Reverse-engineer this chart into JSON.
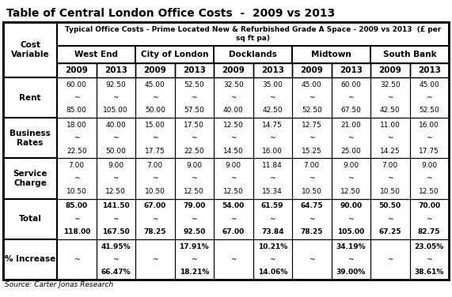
{
  "title": "Table of Central London Office Costs  -  2009 vs 2013",
  "subtitle": "Typical Office Costs - Prime Located New & Refurbished Grade A Space - 2009 vs 2013  (£ per\nsq ft pa)",
  "source": "Source: Carter Jonas Research",
  "locations": [
    "West End",
    "City of London",
    "Docklands",
    "Midtown",
    "South Bank"
  ],
  "years": [
    "2009",
    "2013"
  ],
  "cost_variable_label": "Cost\nVariable",
  "row_keys": [
    "Rent",
    "Business\nRates",
    "Service\nCharge",
    "Total",
    "% Increase"
  ],
  "tilde": "~",
  "data": {
    "Rent": [
      [
        [
          "60.00",
          "~",
          "85.00"
        ],
        [
          "92.50",
          "~",
          "105.00"
        ]
      ],
      [
        [
          "45.00",
          "~",
          "50.00"
        ],
        [
          "52.50",
          "~",
          "57.50"
        ]
      ],
      [
        [
          "32.50",
          "~",
          "40.00"
        ],
        [
          "35.00",
          "~",
          "42.50"
        ]
      ],
      [
        [
          "45.00",
          "~",
          "52.50"
        ],
        [
          "60.00",
          "~",
          "67.50"
        ]
      ],
      [
        [
          "32.50",
          "~",
          "42.50"
        ],
        [
          "45.00",
          "~",
          "52.50"
        ]
      ]
    ],
    "Business\nRates": [
      [
        [
          "18.00",
          "~",
          "22.50"
        ],
        [
          "40.00",
          "~",
          "50.00"
        ]
      ],
      [
        [
          "15.00",
          "~",
          "17.75"
        ],
        [
          "17.50",
          "~",
          "22.50"
        ]
      ],
      [
        [
          "12.50",
          "~",
          "14.50"
        ],
        [
          "14.75",
          "~",
          "16.00"
        ]
      ],
      [
        [
          "12.75",
          "~",
          "15.25"
        ],
        [
          "21.00",
          "~",
          "25.00"
        ]
      ],
      [
        [
          "11.00",
          "~",
          "14.25"
        ],
        [
          "16.00",
          "~",
          "17.75"
        ]
      ]
    ],
    "Service\nCharge": [
      [
        [
          "7.00",
          "~",
          "10.50"
        ],
        [
          "9.00",
          "~",
          "12.50"
        ]
      ],
      [
        [
          "7.00",
          "~",
          "10.50"
        ],
        [
          "9.00",
          "~",
          "12.50"
        ]
      ],
      [
        [
          "9.00",
          "~",
          "12.50"
        ],
        [
          "11.84",
          "~",
          "15.34"
        ]
      ],
      [
        [
          "7.00",
          "~",
          "10.50"
        ],
        [
          "9.00",
          "~",
          "12.50"
        ]
      ],
      [
        [
          "7.00",
          "~",
          "10.50"
        ],
        [
          "9.00",
          "~",
          "12.50"
        ]
      ]
    ],
    "Total": [
      [
        [
          "85.00",
          "~",
          "118.00"
        ],
        [
          "141.50",
          "~",
          "167.50"
        ]
      ],
      [
        [
          "67.00",
          "~",
          "78.25"
        ],
        [
          "79.00",
          "~",
          "92.50"
        ]
      ],
      [
        [
          "54.00",
          "~",
          "67.00"
        ],
        [
          "61.59",
          "~",
          "73.84"
        ]
      ],
      [
        [
          "64.75",
          "~",
          "78.25"
        ],
        [
          "90.00",
          "~",
          "105.00"
        ]
      ],
      [
        [
          "50.50",
          "~",
          "67.25"
        ],
        [
          "70.00",
          "~",
          "82.75"
        ]
      ]
    ],
    "% Increase": [
      [
        [
          "",
          "~",
          ""
        ],
        [
          "41.95%",
          "~",
          "66.47%"
        ]
      ],
      [
        [
          "",
          "~",
          ""
        ],
        [
          "17.91%",
          "~",
          "18.21%"
        ]
      ],
      [
        [
          "",
          "~",
          ""
        ],
        [
          "10.21%",
          "~",
          "14.06%"
        ]
      ],
      [
        [
          "",
          "~",
          ""
        ],
        [
          "34.19%",
          "~",
          "39.00%"
        ]
      ],
      [
        [
          "",
          "~",
          ""
        ],
        [
          "23.05%",
          "~",
          "38.61%"
        ]
      ]
    ]
  },
  "bg_color": "#ffffff",
  "border_color": "#000000",
  "title_fontsize": 10,
  "subtitle_fontsize": 6.5,
  "header_fontsize": 7.5,
  "cell_fontsize": 6.5,
  "bold_rows": [
    "Total",
    "% Increase"
  ]
}
